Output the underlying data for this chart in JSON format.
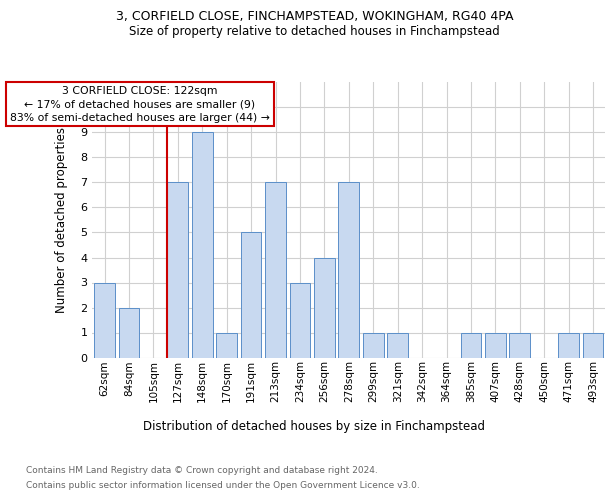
{
  "title_line1": "3, CORFIELD CLOSE, FINCHAMPSTEAD, WOKINGHAM, RG40 4PA",
  "title_line2": "Size of property relative to detached houses in Finchampstead",
  "xlabel": "Distribution of detached houses by size in Finchampstead",
  "ylabel": "Number of detached properties",
  "categories": [
    "62sqm",
    "84sqm",
    "105sqm",
    "127sqm",
    "148sqm",
    "170sqm",
    "191sqm",
    "213sqm",
    "234sqm",
    "256sqm",
    "278sqm",
    "299sqm",
    "321sqm",
    "342sqm",
    "364sqm",
    "385sqm",
    "407sqm",
    "428sqm",
    "450sqm",
    "471sqm",
    "493sqm"
  ],
  "values": [
    3,
    2,
    0,
    7,
    9,
    1,
    5,
    7,
    3,
    4,
    7,
    1,
    1,
    0,
    0,
    1,
    1,
    1,
    0,
    1,
    1
  ],
  "bar_color": "#c8d9f0",
  "bar_edge_color": "#5b8fc9",
  "annotation_box_text": "3 CORFIELD CLOSE: 122sqm\n← 17% of detached houses are smaller (9)\n83% of semi-detached houses are larger (44) →",
  "annotation_box_color": "#ffffff",
  "annotation_box_edge_color": "#cc0000",
  "vline_x_index": 3,
  "vline_color": "#cc0000",
  "ylim": [
    0,
    11
  ],
  "yticks": [
    0,
    1,
    2,
    3,
    4,
    5,
    6,
    7,
    8,
    9,
    10,
    11
  ],
  "footnote_line1": "Contains HM Land Registry data © Crown copyright and database right 2024.",
  "footnote_line2": "Contains public sector information licensed under the Open Government Licence v3.0.",
  "background_color": "#ffffff",
  "grid_color": "#d0d0d0"
}
